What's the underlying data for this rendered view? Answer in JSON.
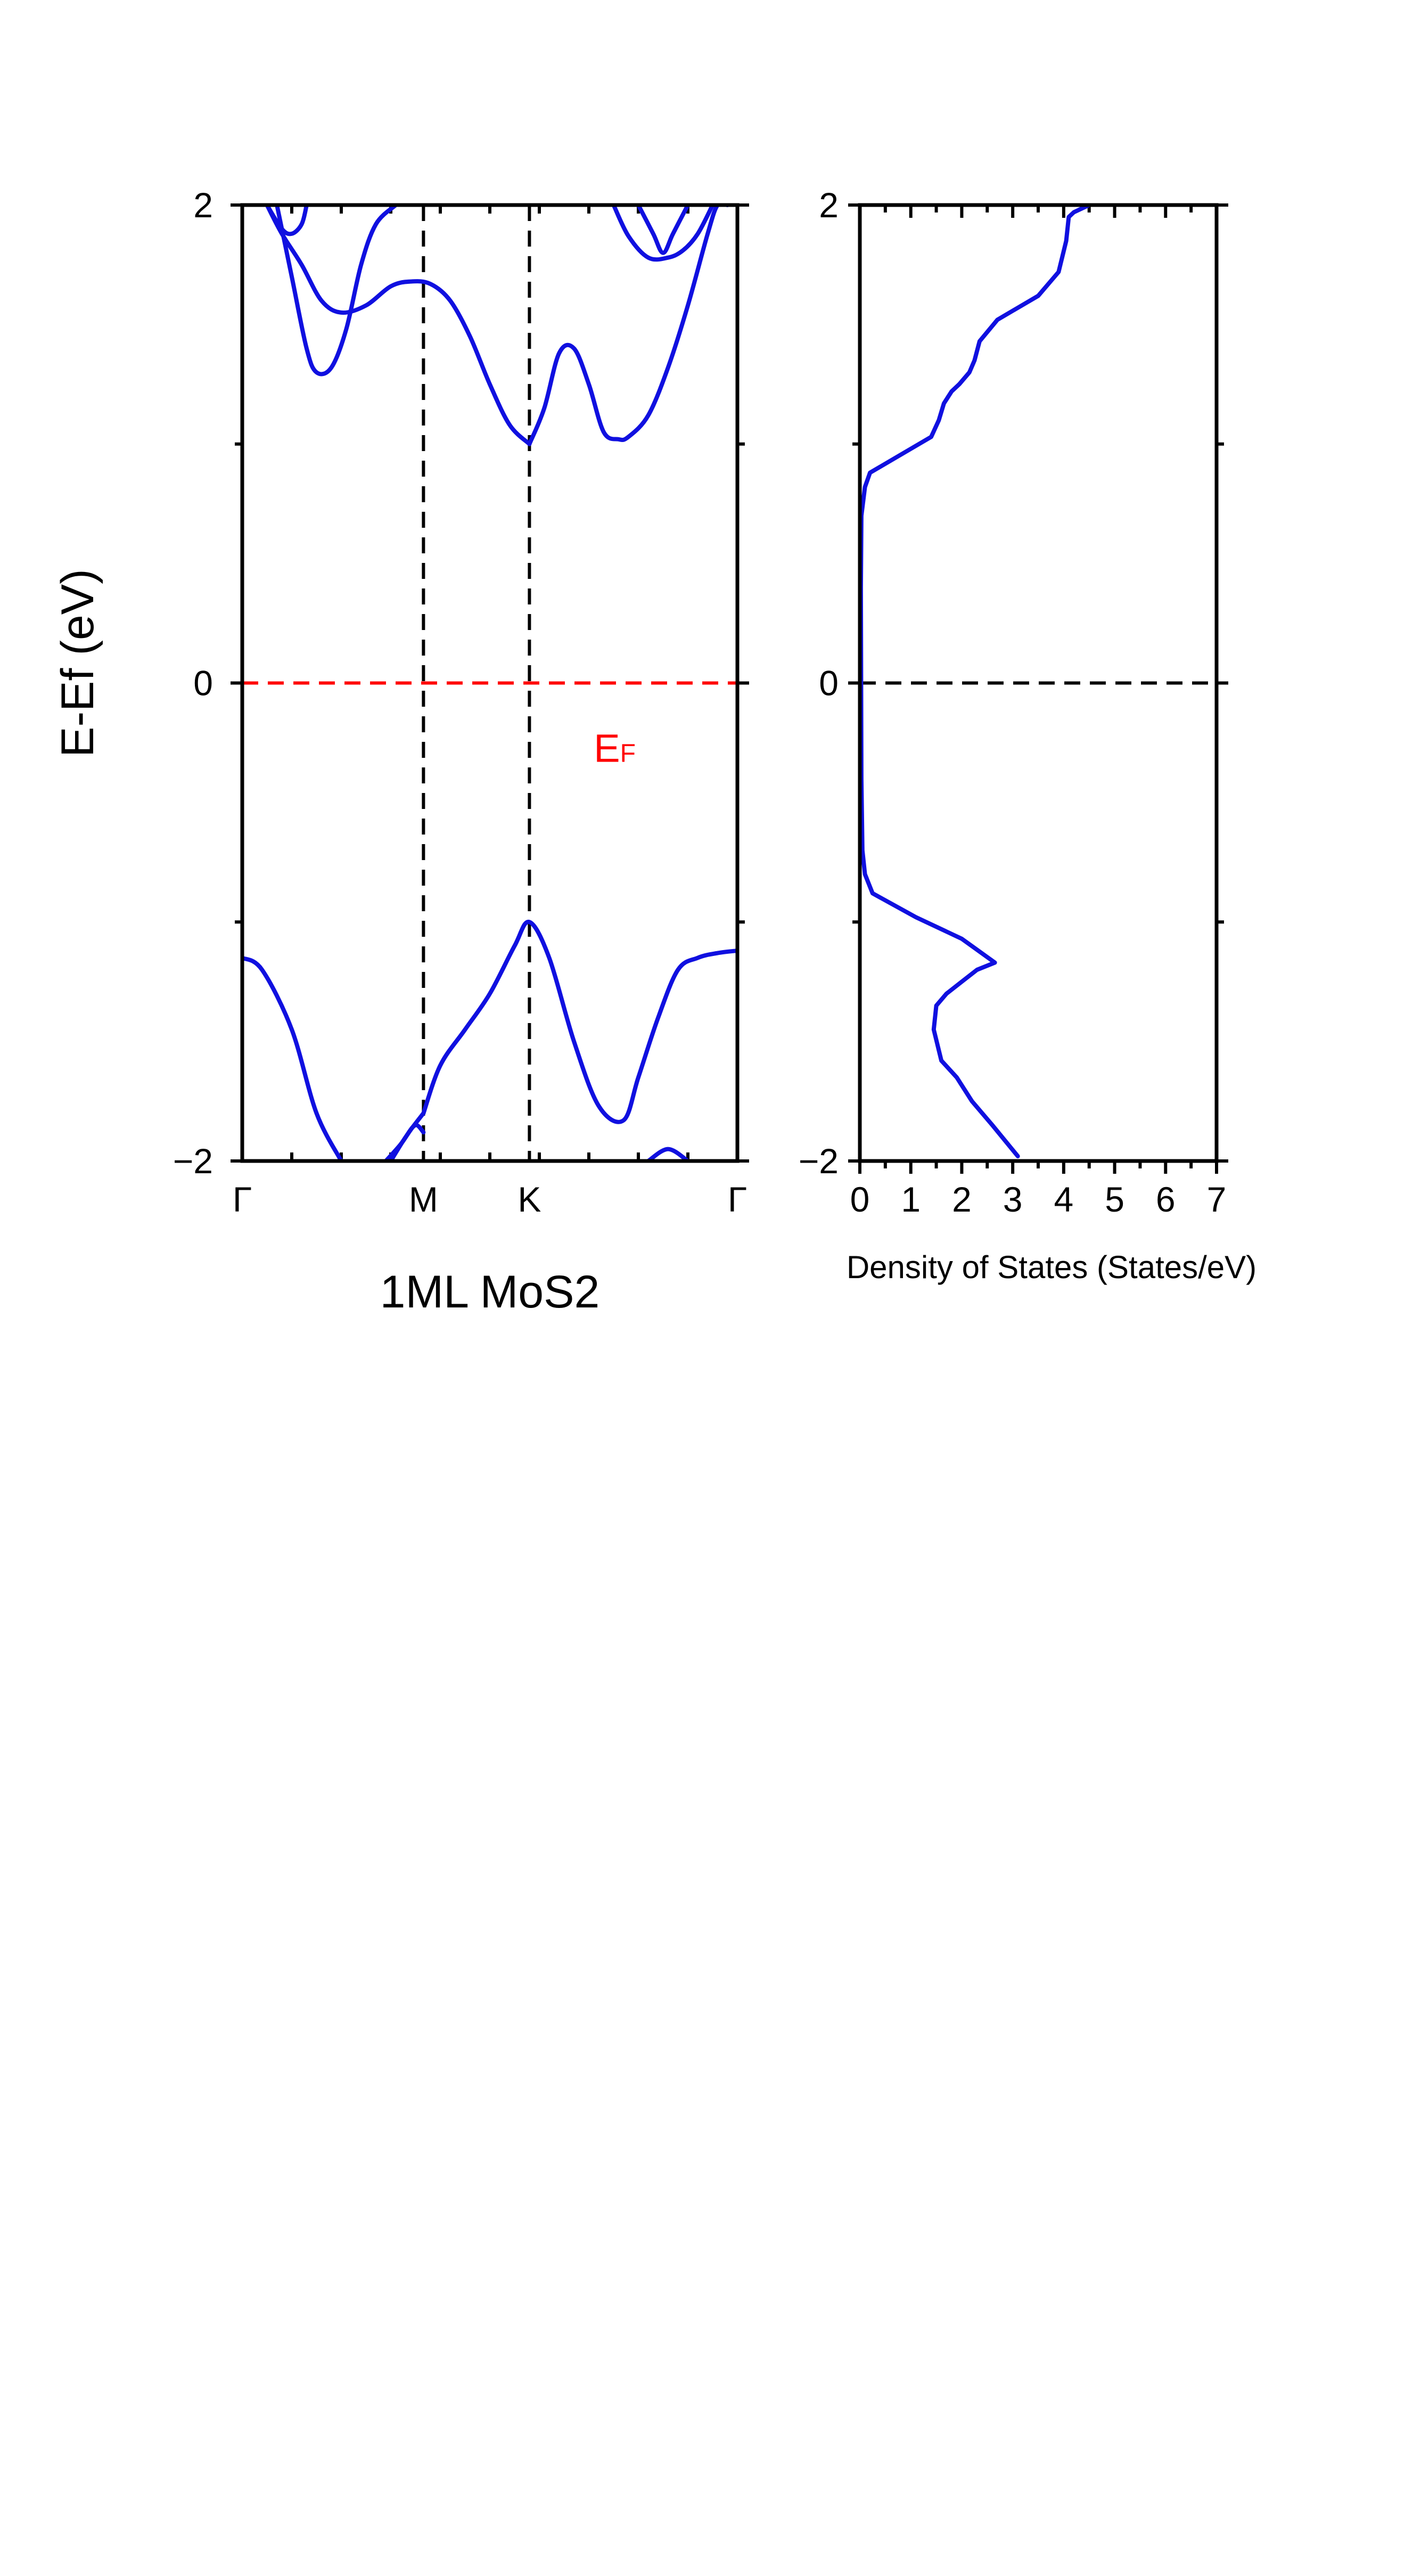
{
  "chart_data": [
    {
      "type": "line",
      "panel": "band-structure",
      "title": "",
      "xlabel": "1ML MoS2",
      "ylabel": "E-Ef (eV)",
      "ylim": [
        -2,
        2
      ],
      "xlim": [
        0,
        1
      ],
      "grid": false,
      "k_points": [
        {
          "label": "Γ",
          "x": 0.0
        },
        {
          "label": "M",
          "x": 0.366
        },
        {
          "label": "K",
          "x": 0.58
        },
        {
          "label": "Γ",
          "x": 1.0
        }
      ],
      "y_ticks": [
        "−2",
        "0",
        "2"
      ],
      "fermi_level": {
        "label_main": "E",
        "label_sub": "F",
        "y": 0,
        "color": "#ff0000"
      },
      "line_color": "#1010e0",
      "series": [
        {
          "x": [
            0.0,
            0.04,
            0.1,
            0.15,
            0.2
          ],
          "y": [
            -1.15,
            -1.2,
            -1.45,
            -1.8,
            -2.0
          ]
        },
        {
          "x": [
            0.29,
            0.32,
            0.34,
            0.366
          ],
          "y": [
            -2.0,
            -1.93,
            -1.87,
            -1.8
          ]
        },
        {
          "x": [
            0.3,
            0.33,
            0.35,
            0.366
          ],
          "y": [
            -2.0,
            -1.9,
            -1.85,
            -1.88
          ]
        },
        {
          "x": [
            0.366,
            0.4,
            0.45,
            0.5,
            0.55,
            0.58,
            0.62,
            0.67,
            0.72,
            0.77,
            0.8,
            0.84,
            0.88,
            0.92,
            0.96,
            1.0
          ],
          "y": [
            -1.8,
            -1.6,
            -1.45,
            -1.3,
            -1.1,
            -1.0,
            -1.15,
            -1.5,
            -1.77,
            -1.83,
            -1.65,
            -1.4,
            -1.2,
            -1.15,
            -1.13,
            -1.12
          ]
        },
        {
          "x": [
            0.82,
            0.86,
            0.9
          ],
          "y": [
            -2.0,
            -1.95,
            -2.0
          ]
        },
        {
          "x": [
            0.07,
            0.1,
            0.13,
            0.15,
            0.18,
            0.21,
            0.24,
            0.27,
            0.31
          ],
          "y": [
            2.0,
            1.7,
            1.4,
            1.3,
            1.32,
            1.48,
            1.75,
            1.92,
            2.0
          ]
        },
        {
          "x": [
            0.05,
            0.08,
            0.12,
            0.16,
            0.2,
            0.25,
            0.3,
            0.34,
            0.38,
            0.42,
            0.46,
            0.5,
            0.54,
            0.58
          ],
          "y": [
            2.0,
            1.88,
            1.75,
            1.6,
            1.55,
            1.58,
            1.66,
            1.68,
            1.67,
            1.6,
            1.45,
            1.25,
            1.08,
            1.0
          ]
        },
        {
          "x": [
            0.05,
            0.08,
            0.1,
            0.12,
            0.13
          ],
          "y": [
            2.0,
            1.9,
            1.88,
            1.92,
            2.0
          ]
        },
        {
          "x": [
            0.58,
            0.61,
            0.64,
            0.67,
            0.7,
            0.73,
            0.76,
            0.78,
            0.82,
            0.86,
            0.9,
            0.94,
            0.96,
            0.98
          ],
          "y": [
            1.0,
            1.15,
            1.38,
            1.4,
            1.25,
            1.05,
            1.02,
            1.03,
            1.12,
            1.32,
            1.58,
            1.88,
            2.0,
            2.0
          ]
        },
        {
          "x": [
            0.75,
            0.78,
            0.82,
            0.86,
            0.89,
            0.92,
            0.95
          ],
          "y": [
            2.0,
            1.87,
            1.78,
            1.78,
            1.81,
            1.88,
            2.0
          ]
        },
        {
          "x": [
            0.8,
            0.83,
            0.85,
            0.87,
            0.9
          ],
          "y": [
            2.0,
            1.88,
            1.8,
            1.88,
            2.0
          ]
        }
      ]
    },
    {
      "type": "line",
      "panel": "density-of-states",
      "title": "",
      "xlabel": "Density of States (States/eV)",
      "ylabel": "",
      "xlim": [
        0,
        7
      ],
      "ylim": [
        -2,
        2
      ],
      "x_ticks": [
        "0",
        "1",
        "2",
        "3",
        "4",
        "5",
        "6",
        "7"
      ],
      "y_ticks": [
        "−2",
        "0",
        "2"
      ],
      "grid": false,
      "zero_line": {
        "y": 0,
        "color": "#000000"
      },
      "line_color": "#1010e0",
      "series": [
        {
          "x": [
            3.1,
            2.6,
            2.2,
            1.9,
            1.6,
            1.45,
            1.5,
            1.7,
            2.0,
            2.3,
            2.65,
            2.0,
            1.1,
            0.25,
            0.1,
            0.05,
            0.03,
            0.02,
            0.03,
            0.1,
            0.2,
            0.6,
            1.4,
            1.55,
            1.65,
            1.8,
            1.95,
            2.15,
            2.25,
            2.35,
            2.7,
            3.5,
            3.9,
            4.05,
            4.1,
            4.2,
            4.5
          ],
          "y": [
            -1.98,
            -1.85,
            -1.75,
            -1.65,
            -1.58,
            -1.45,
            -1.35,
            -1.3,
            -1.25,
            -1.2,
            -1.17,
            -1.07,
            -0.98,
            -0.88,
            -0.8,
            -0.7,
            -0.4,
            0.4,
            0.7,
            0.82,
            0.88,
            0.93,
            1.03,
            1.1,
            1.17,
            1.22,
            1.25,
            1.3,
            1.35,
            1.43,
            1.52,
            1.62,
            1.72,
            1.85,
            1.95,
            1.97,
            2.0
          ]
        }
      ]
    }
  ]
}
